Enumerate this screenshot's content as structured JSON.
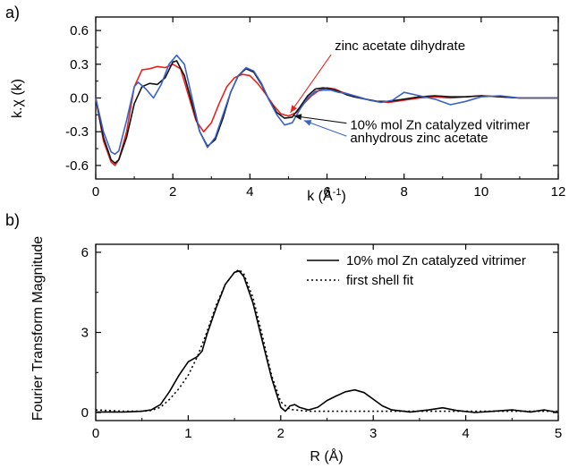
{
  "chart_data": [
    {
      "panel_label": "a)",
      "type": "line",
      "xlabel": "k (Å⁻¹)",
      "ylabel": "k.χ (k)",
      "xlim": [
        0,
        12
      ],
      "ylim": [
        -0.72,
        0.72
      ],
      "xticks": [
        0,
        2,
        4,
        6,
        8,
        10,
        12
      ],
      "yticks": [
        -0.6,
        -0.3,
        0.0,
        0.3,
        0.6
      ],
      "ytick_labels": [
        "-0.6",
        "-0.3",
        "0.0",
        "0.3",
        "0.6"
      ],
      "grid": false,
      "series": [
        {
          "name": "zinc acetate dihydrate",
          "color": "#e8231f",
          "x": [
            0,
            0.2,
            0.4,
            0.5,
            0.6,
            0.8,
            1.0,
            1.2,
            1.4,
            1.6,
            1.8,
            2.0,
            2.2,
            2.4,
            2.6,
            2.8,
            3.0,
            3.2,
            3.4,
            3.6,
            3.8,
            4.0,
            4.2,
            4.4,
            4.6,
            4.8,
            5.0,
            5.2,
            5.4,
            5.6,
            5.8,
            6.0,
            6.2,
            6.4,
            6.6,
            6.8,
            7.0,
            7.3,
            7.6,
            8.0,
            8.4,
            8.8,
            9.2,
            9.6,
            10.0,
            10.5,
            11.0,
            11.5,
            12.0
          ],
          "y": [
            0.0,
            -0.38,
            -0.57,
            -0.6,
            -0.55,
            -0.3,
            0.1,
            0.25,
            0.26,
            0.28,
            0.27,
            0.3,
            0.26,
            0.03,
            -0.2,
            -0.3,
            -0.22,
            -0.05,
            0.1,
            0.18,
            0.21,
            0.2,
            0.13,
            0.04,
            -0.06,
            -0.14,
            -0.16,
            -0.13,
            -0.05,
            0.02,
            0.07,
            0.09,
            0.08,
            0.05,
            0.03,
            0.01,
            -0.01,
            -0.03,
            -0.04,
            -0.02,
            0.0,
            0.01,
            0.0,
            0.01,
            0.02,
            0.01,
            0.0,
            0.0,
            0.0
          ]
        },
        {
          "name": "10% mol Zn catalyzed vitrimer",
          "color": "#111111",
          "x": [
            0,
            0.2,
            0.4,
            0.5,
            0.6,
            0.8,
            1.0,
            1.2,
            1.4,
            1.6,
            1.8,
            2.0,
            2.1,
            2.3,
            2.5,
            2.7,
            2.9,
            3.1,
            3.3,
            3.5,
            3.7,
            3.9,
            4.1,
            4.3,
            4.5,
            4.7,
            4.9,
            5.1,
            5.3,
            5.5,
            5.7,
            5.9,
            6.1,
            6.3,
            6.5,
            6.7,
            7.0,
            7.3,
            7.6,
            8.0,
            8.4,
            8.8,
            9.2,
            9.6,
            10.0,
            10.5,
            11.0,
            11.5,
            12.0
          ],
          "y": [
            0.0,
            -0.35,
            -0.55,
            -0.58,
            -0.55,
            -0.35,
            -0.05,
            0.1,
            0.13,
            0.12,
            0.18,
            0.32,
            0.33,
            0.2,
            -0.05,
            -0.3,
            -0.43,
            -0.37,
            -0.18,
            0.05,
            0.2,
            0.26,
            0.23,
            0.12,
            -0.02,
            -0.13,
            -0.18,
            -0.17,
            -0.08,
            0.02,
            0.08,
            0.09,
            0.08,
            0.06,
            0.03,
            0.01,
            -0.01,
            -0.03,
            -0.03,
            -0.01,
            0.01,
            0.02,
            0.01,
            0.01,
            0.02,
            0.01,
            0.0,
            0.0,
            0.0
          ]
        },
        {
          "name": "anhydrous zinc acetate",
          "color": "#3a63c7",
          "x": [
            0,
            0.2,
            0.4,
            0.5,
            0.6,
            0.8,
            1.0,
            1.1,
            1.3,
            1.5,
            1.7,
            1.9,
            2.1,
            2.3,
            2.5,
            2.7,
            2.9,
            3.1,
            3.3,
            3.5,
            3.7,
            3.9,
            4.1,
            4.3,
            4.5,
            4.7,
            4.9,
            5.1,
            5.3,
            5.5,
            5.7,
            5.9,
            6.1,
            6.3,
            6.5,
            6.8,
            7.1,
            7.4,
            7.7,
            8.0,
            8.4,
            8.8,
            9.2,
            9.6,
            10.0,
            10.5,
            11.0,
            11.5,
            12.0
          ],
          "y": [
            0.0,
            -0.3,
            -0.48,
            -0.5,
            -0.47,
            -0.2,
            0.1,
            0.14,
            0.08,
            0.0,
            0.12,
            0.3,
            0.38,
            0.3,
            0.0,
            -0.3,
            -0.44,
            -0.35,
            -0.15,
            0.05,
            0.2,
            0.27,
            0.24,
            0.13,
            -0.02,
            -0.15,
            -0.24,
            -0.22,
            -0.1,
            0.0,
            0.06,
            0.07,
            0.07,
            0.05,
            0.04,
            0.01,
            -0.02,
            -0.04,
            -0.02,
            0.05,
            0.02,
            -0.01,
            -0.06,
            -0.03,
            0.01,
            0.02,
            0.0,
            0.0,
            0.0
          ]
        }
      ],
      "annotations": [
        {
          "text": "zinc acetate dihydrate",
          "x": 6.2,
          "y": 0.465,
          "arrow_to": [
            5.05,
            -0.13
          ],
          "color": "#e8231f"
        },
        {
          "text": "10% mol Zn catalyzed vitrimer",
          "x": 6.6,
          "y": -0.24,
          "arrow_to": [
            5.15,
            -0.16
          ],
          "color": "#111111"
        },
        {
          "text": "anhydrous zinc acetate",
          "x": 6.6,
          "y": -0.355,
          "arrow_to": [
            5.4,
            -0.2
          ],
          "color": "#3a63c7"
        }
      ]
    },
    {
      "panel_label": "b)",
      "type": "line",
      "xlabel": "R (Å)",
      "ylabel": "Fourier Transform Magnitude",
      "xlim": [
        0,
        5
      ],
      "ylim": [
        -0.3,
        6.3
      ],
      "xticks": [
        0,
        1,
        2,
        3,
        4,
        5
      ],
      "yticks": [
        0,
        3,
        6
      ],
      "grid": false,
      "legend": "top-right",
      "series": [
        {
          "name": "10% mol Zn catalyzed vitrimer",
          "style": "solid",
          "x": [
            0,
            0.3,
            0.5,
            0.6,
            0.7,
            0.8,
            0.9,
            1.0,
            1.1,
            1.15,
            1.2,
            1.3,
            1.4,
            1.5,
            1.55,
            1.6,
            1.7,
            1.8,
            1.9,
            2.0,
            2.05,
            2.1,
            2.15,
            2.2,
            2.3,
            2.4,
            2.5,
            2.6,
            2.7,
            2.8,
            2.9,
            3.0,
            3.1,
            3.2,
            3.4,
            3.6,
            3.75,
            3.9,
            4.1,
            4.3,
            4.5,
            4.7,
            4.85,
            5.0
          ],
          "y": [
            0.02,
            0.02,
            0.05,
            0.1,
            0.3,
            0.8,
            1.4,
            1.9,
            2.1,
            2.3,
            2.9,
            3.9,
            4.8,
            5.25,
            5.3,
            5.1,
            4.1,
            2.7,
            1.3,
            0.2,
            0.05,
            0.25,
            0.3,
            0.2,
            0.1,
            0.2,
            0.45,
            0.62,
            0.78,
            0.85,
            0.75,
            0.5,
            0.25,
            0.1,
            0.02,
            0.1,
            0.18,
            0.08,
            0.0,
            0.05,
            0.1,
            0.02,
            0.1,
            0.0
          ]
        },
        {
          "name": "first shell fit",
          "style": "dotted",
          "x": [
            0,
            0.3,
            0.5,
            0.6,
            0.7,
            0.8,
            0.9,
            1.0,
            1.1,
            1.2,
            1.3,
            1.4,
            1.5,
            1.55,
            1.6,
            1.7,
            1.8,
            1.9,
            2.0,
            2.1,
            2.3,
            2.5,
            2.7,
            3.0,
            3.5,
            4.0,
            4.5,
            5.0
          ],
          "y": [
            0.1,
            0.05,
            0.05,
            0.08,
            0.2,
            0.5,
            0.9,
            1.4,
            2.1,
            3.0,
            4.0,
            4.8,
            5.25,
            5.35,
            5.2,
            4.3,
            2.9,
            1.4,
            0.4,
            0.12,
            0.05,
            0.05,
            0.05,
            0.05,
            0.05,
            0.05,
            0.05,
            0.05
          ]
        }
      ]
    }
  ]
}
